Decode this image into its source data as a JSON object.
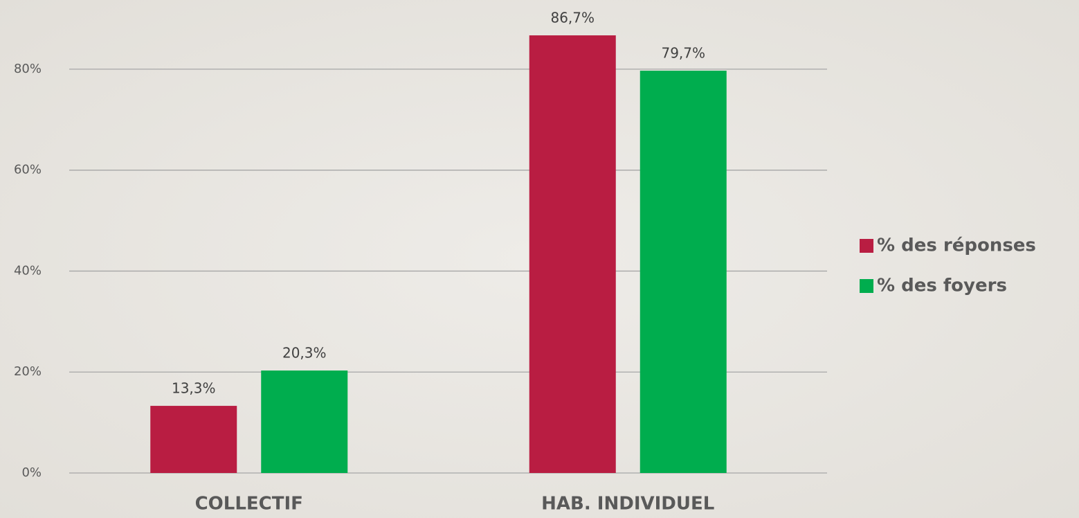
{
  "chart_data": {
    "type": "bar",
    "categories": [
      "COLLECTIF",
      "HAB. INDIVIDUEL"
    ],
    "series": [
      {
        "name": "% des réponses",
        "color": "#b91d42",
        "values": [
          13.3,
          86.7
        ],
        "value_labels": [
          "13,3%",
          "86,7%"
        ]
      },
      {
        "name": "% des foyers",
        "color": "#00ad4e",
        "values": [
          20.3,
          79.7
        ],
        "value_labels": [
          "20,3%",
          "79,7%"
        ]
      }
    ],
    "ylim": [
      0,
      90
    ],
    "yticks": [
      {
        "value": 0,
        "label": "0%"
      },
      {
        "value": 20,
        "label": "20%"
      },
      {
        "value": 40,
        "label": "40%"
      },
      {
        "value": 60,
        "label": "60%"
      },
      {
        "value": 80,
        "label": "80%"
      }
    ],
    "grid": true,
    "legend": "right"
  }
}
